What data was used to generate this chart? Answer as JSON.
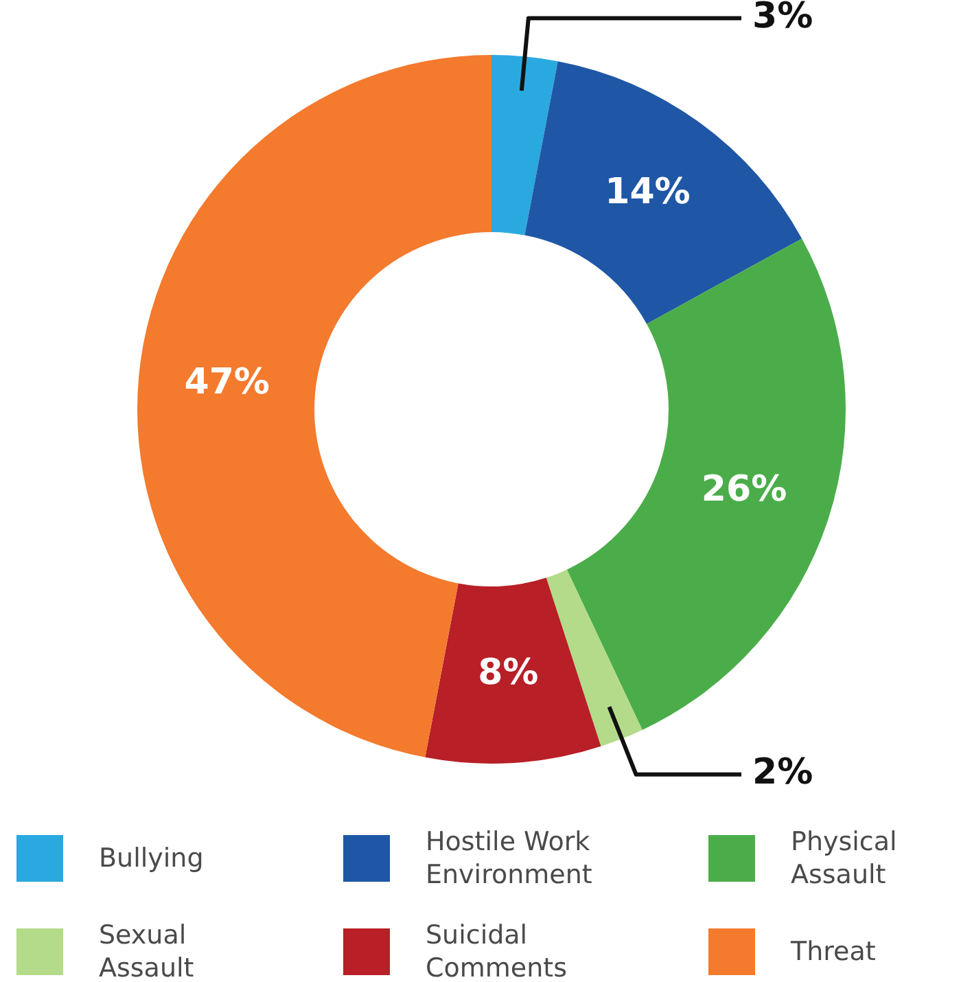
{
  "chart_data": {
    "type": "donut",
    "categories": [
      "Bullying",
      "Hostile Work Environment",
      "Physical Assault",
      "Sexual Assault",
      "Suicidal Comments",
      "Threat"
    ],
    "values": [
      3,
      14,
      26,
      2,
      8,
      47
    ],
    "colors": [
      "#2aa9e0",
      "#1f57a6",
      "#4bad4a",
      "#b3db8a",
      "#b81f27",
      "#f47a2e"
    ],
    "value_labels": [
      "3%",
      "14%",
      "26%",
      "2%",
      "8%",
      "47%"
    ],
    "legend": "bottom"
  }
}
